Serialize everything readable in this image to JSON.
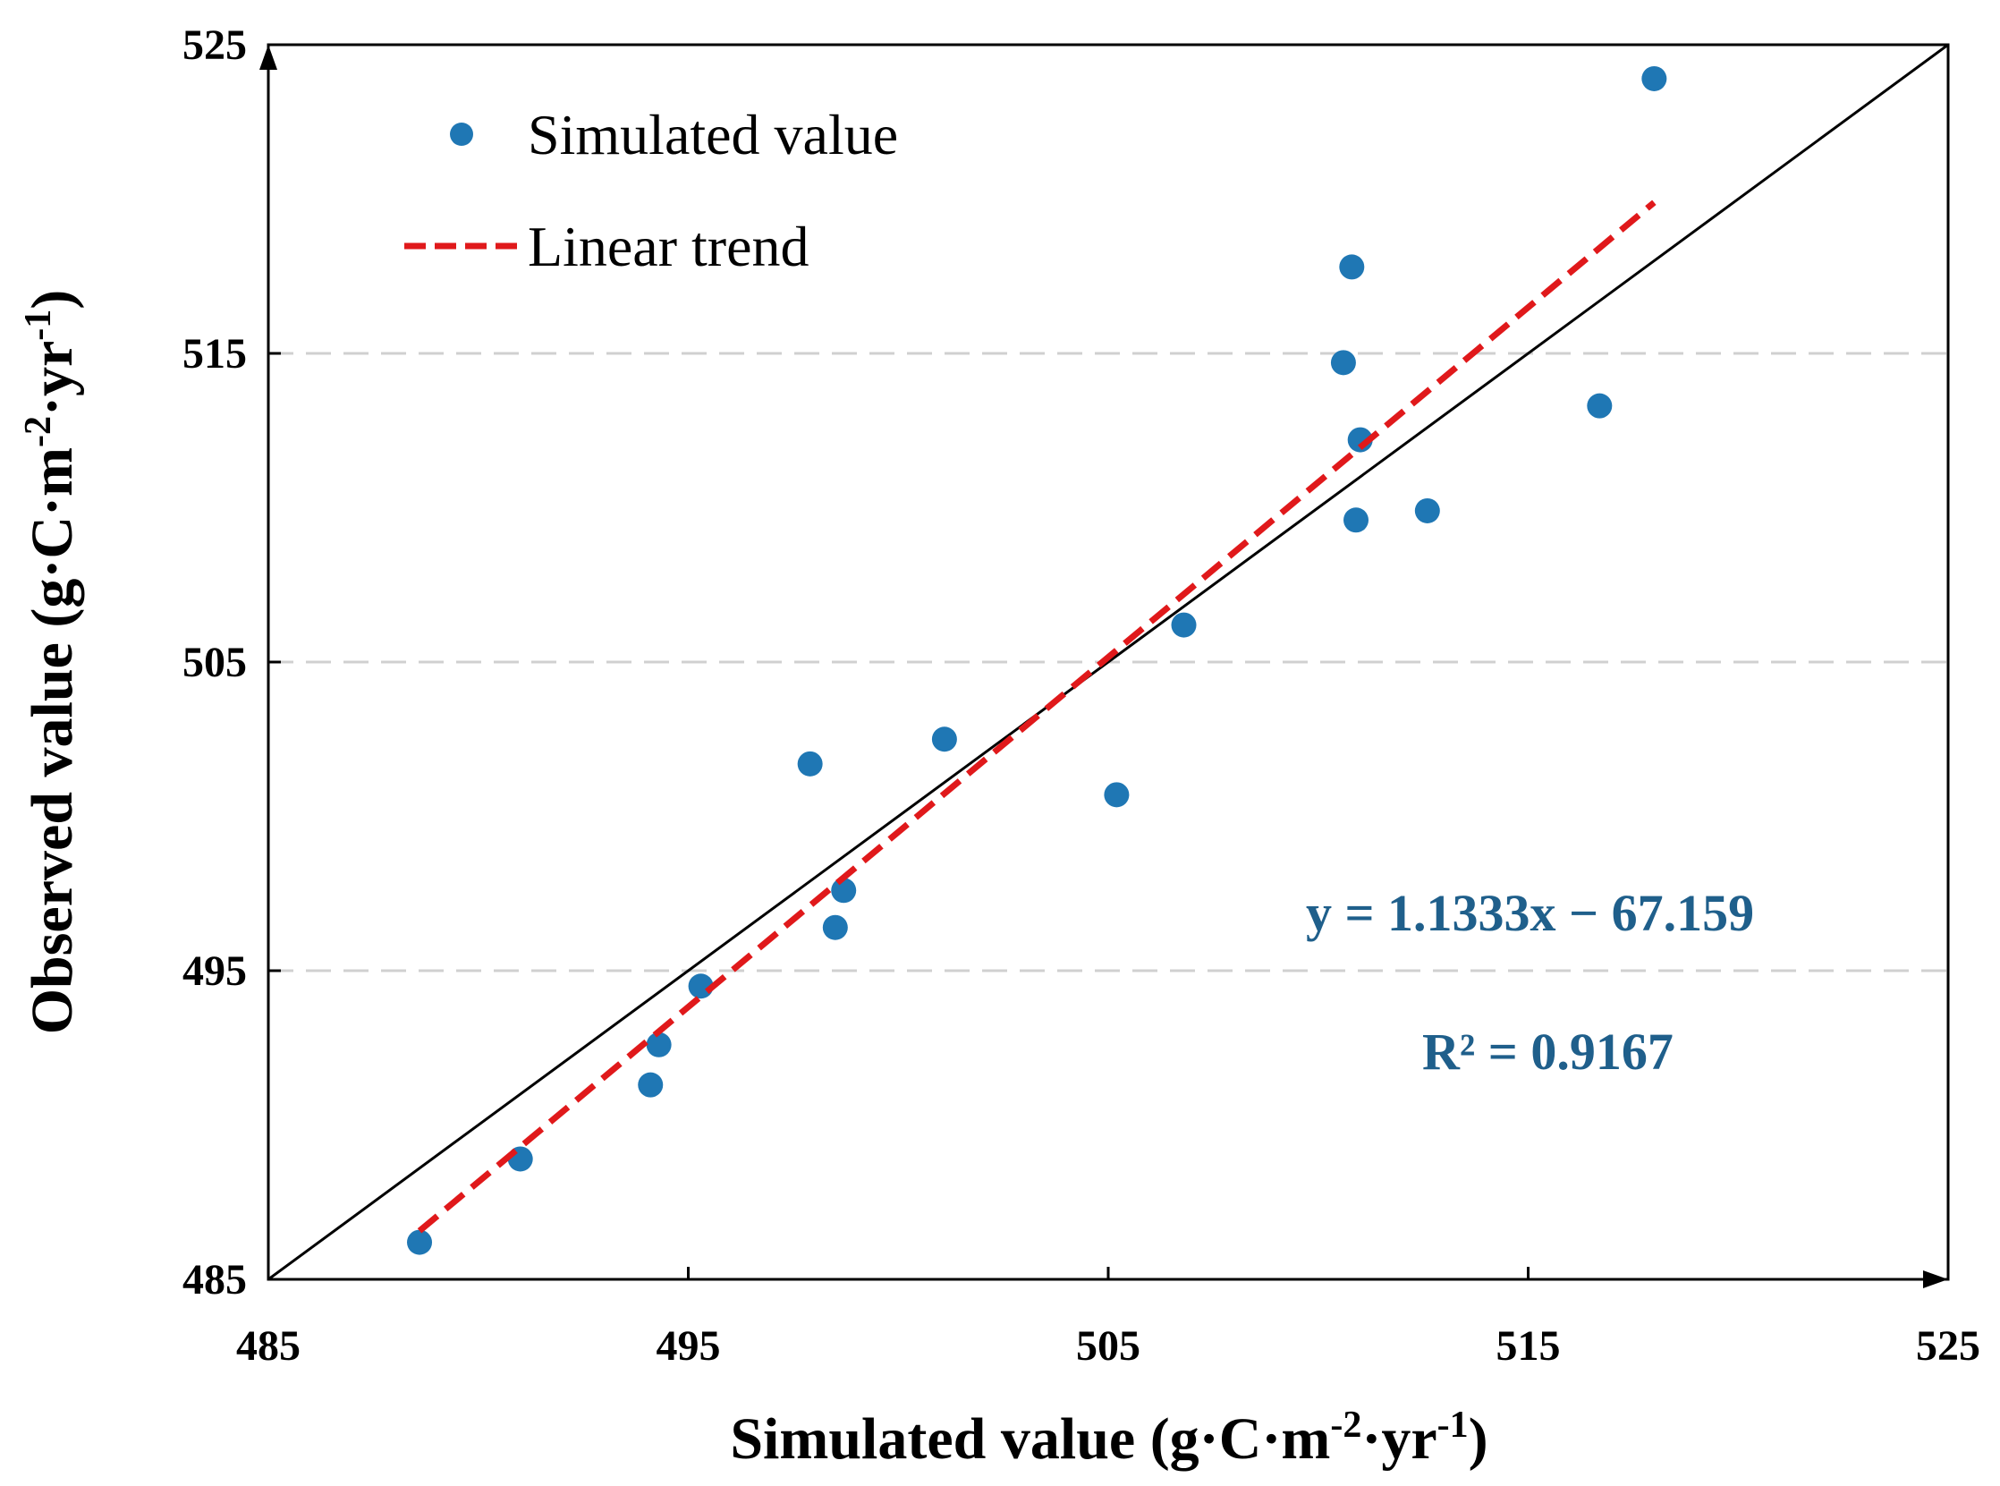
{
  "chart_data": {
    "type": "scatter",
    "xlabel": "Simulated value (g·C·m-2·yr-1)",
    "ylabel": "Observed value (g·C·m-2·yr-1)",
    "xlabel_parts": {
      "main": "Simulated value (g·C·m",
      "sup1": "-2",
      "mid": "·yr",
      "sup2": "-1",
      "end": ")"
    },
    "ylabel_parts": {
      "main": "Observed value (g·C·m",
      "sup1": "-2",
      "mid": "·yr",
      "sup2": "-1",
      "end": ")"
    },
    "xlim": [
      485,
      525
    ],
    "ylim": [
      485,
      525
    ],
    "x_ticks": [
      485,
      495,
      505,
      515,
      525
    ],
    "y_ticks": [
      485,
      495,
      505,
      515,
      525
    ],
    "grid": "horizontal dashed",
    "legend_position": "top-left",
    "series": [
      {
        "name": "Simulated value",
        "kind": "scatter",
        "color": "#1f77b4",
        "points": [
          {
            "x": 488.6,
            "y": 486.2
          },
          {
            "x": 491.0,
            "y": 488.9
          },
          {
            "x": 494.1,
            "y": 491.3
          },
          {
            "x": 494.3,
            "y": 492.6
          },
          {
            "x": 495.3,
            "y": 494.5
          },
          {
            "x": 497.9,
            "y": 501.7
          },
          {
            "x": 498.5,
            "y": 496.4
          },
          {
            "x": 498.7,
            "y": 497.6
          },
          {
            "x": 501.1,
            "y": 502.5
          },
          {
            "x": 505.2,
            "y": 500.7
          },
          {
            "x": 506.8,
            "y": 506.2
          },
          {
            "x": 510.6,
            "y": 514.7
          },
          {
            "x": 510.8,
            "y": 517.8
          },
          {
            "x": 510.9,
            "y": 509.6
          },
          {
            "x": 511.0,
            "y": 512.2
          },
          {
            "x": 512.6,
            "y": 509.9
          },
          {
            "x": 516.7,
            "y": 513.3
          },
          {
            "x": 518.0,
            "y": 523.9
          }
        ]
      },
      {
        "name": "Linear trend",
        "kind": "line",
        "style": "dashed",
        "color": "#e0191b",
        "x": [
          488.6,
          518.0
        ],
        "slope": 1.1333,
        "intercept": -67.159
      },
      {
        "name": "1:1 line",
        "kind": "line",
        "style": "solid",
        "color": "#000000",
        "x": [
          485,
          525
        ],
        "y": [
          485,
          525
        ]
      }
    ],
    "legend": [
      {
        "label": "Simulated value"
      },
      {
        "label": "Linear trend"
      }
    ],
    "annotations": {
      "equation": "y = 1.1333x − 67.159",
      "r2": "R² = 0.9167",
      "color": "#1f5f8b"
    }
  }
}
